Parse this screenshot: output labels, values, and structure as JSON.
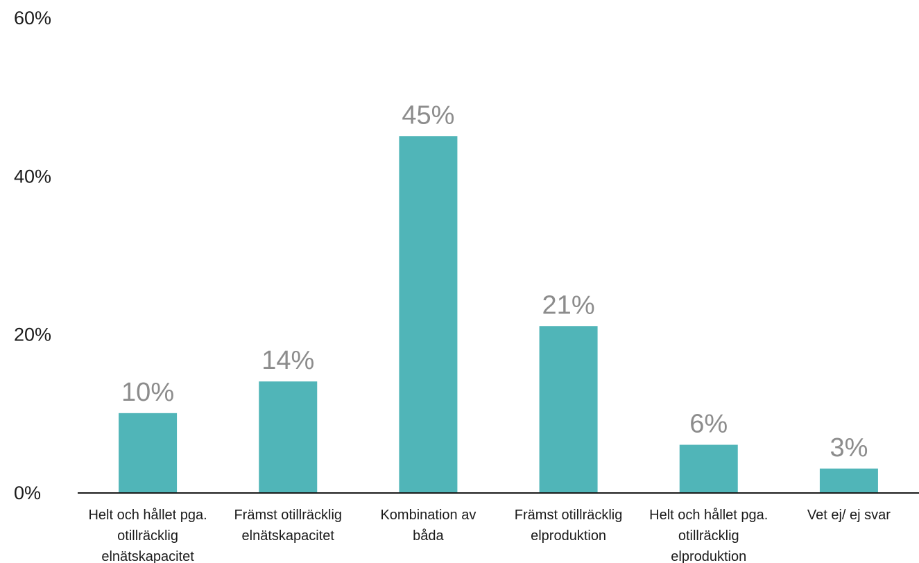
{
  "chart_data": {
    "type": "bar",
    "categories": [
      [
        "Helt och hållet pga.",
        "otillräcklig",
        "elnätskapacitet"
      ],
      [
        "Främst otillräcklig",
        "elnätskapacitet"
      ],
      [
        "Kombination av",
        "båda"
      ],
      [
        "Främst otillräcklig",
        "elproduktion"
      ],
      [
        "Helt och hållet pga.",
        "otillräcklig",
        "elproduktion"
      ],
      [
        "Vet ej/ ej svar"
      ]
    ],
    "values": [
      10,
      14,
      45,
      21,
      6,
      3
    ],
    "data_labels": [
      "10%",
      "14%",
      "45%",
      "21%",
      "6%",
      "3%"
    ],
    "yticks": [
      0,
      20,
      40,
      60
    ],
    "ytick_labels": [
      "0%",
      "20%",
      "40%",
      "60%"
    ],
    "ylim": [
      0,
      60
    ],
    "title": "",
    "xlabel": "",
    "ylabel": "",
    "grid": false,
    "legend": "none",
    "colors": {
      "bar": "#50b5b8",
      "axis": "#1a1a1a",
      "data_label": "#8c8c8c",
      "text": "#1a1a1a"
    }
  }
}
